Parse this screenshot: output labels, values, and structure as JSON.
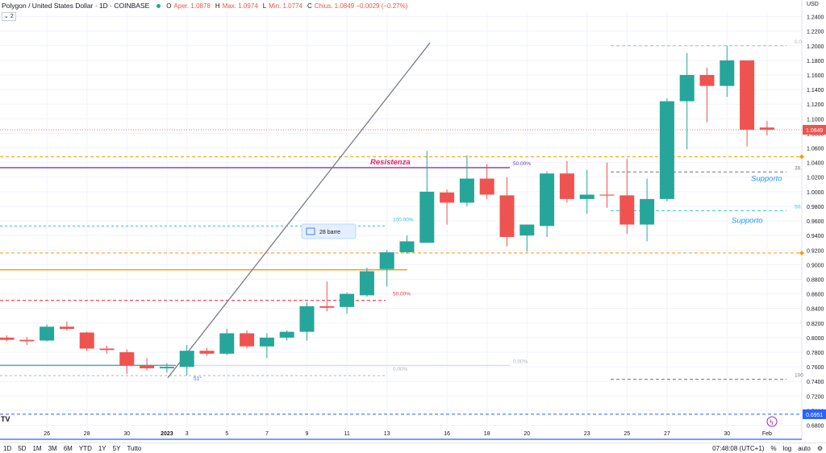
{
  "header": {
    "symbol": "Polygon / United States Dollar · 1D · COINBASE",
    "o_label": "O",
    "o_value": "Aper. 1.0878",
    "h_label": "H",
    "h_value": "Max. 1.0974",
    "l_label": "L",
    "l_value": "Min. 1.0774",
    "c_label": "C",
    "c_value": "Chius. 1.0849 −0.0029 (−0.27%)",
    "collapse": "2"
  },
  "axis_currency": "USD",
  "bottom": {
    "ranges": [
      "1D",
      "5D",
      "1M",
      "3M",
      "6M",
      "YTD",
      "1Y",
      "5Y",
      "Tutto"
    ],
    "clock": "07:48:08 (UTC+1)",
    "percent": "%",
    "log": "log",
    "auto": "auto"
  },
  "colors": {
    "up": "#26a69a",
    "down": "#ef5350",
    "grid": "#f0f3fa"
  },
  "chart_data": {
    "type": "candlestick",
    "title": "Polygon / United States Dollar · 1D · COINBASE",
    "ylim": [
      0.68,
      1.26
    ],
    "yticks": [
      "1.2400",
      "1.2200",
      "1.2000",
      "1.1800",
      "1.1600",
      "1.1400",
      "1.1200",
      "1.1000",
      "1.0800",
      "1.0600",
      "1.0400",
      "1.0200",
      "1.0000",
      "0.9800",
      "0.9600",
      "0.9400",
      "0.9200",
      "0.9000",
      "0.8800",
      "0.8600",
      "0.8400",
      "0.8200",
      "0.8000",
      "0.7800",
      "0.7600",
      "0.7400",
      "0.7200",
      "0.7000",
      "0.6800"
    ],
    "xticks": [
      "26",
      "28",
      "30",
      "2023",
      "3",
      "5",
      "7",
      "9",
      "11",
      "13",
      "16",
      "18",
      "20",
      "23",
      "25",
      "27",
      "30",
      "Feb"
    ],
    "candles": [
      {
        "date": "Dec 24",
        "o": 0.8,
        "h": 0.803,
        "l": 0.795,
        "c": 0.797
      },
      {
        "date": "Dec 25",
        "o": 0.797,
        "h": 0.801,
        "l": 0.79,
        "c": 0.795
      },
      {
        "date": "Dec 26",
        "o": 0.796,
        "h": 0.818,
        "l": 0.795,
        "c": 0.815
      },
      {
        "date": "Dec 27",
        "o": 0.815,
        "h": 0.822,
        "l": 0.81,
        "c": 0.812
      },
      {
        "date": "Dec 28",
        "o": 0.807,
        "h": 0.808,
        "l": 0.782,
        "c": 0.785
      },
      {
        "date": "Dec 29",
        "o": 0.785,
        "h": 0.789,
        "l": 0.778,
        "c": 0.783
      },
      {
        "date": "Dec 30",
        "o": 0.78,
        "h": 0.784,
        "l": 0.75,
        "c": 0.762
      },
      {
        "date": "Dec 31",
        "o": 0.762,
        "h": 0.772,
        "l": 0.755,
        "c": 0.758
      },
      {
        "date": "Jan 01",
        "o": 0.758,
        "h": 0.765,
        "l": 0.752,
        "c": 0.76
      },
      {
        "date": "Jan 02",
        "o": 0.76,
        "h": 0.79,
        "l": 0.748,
        "c": 0.782
      },
      {
        "date": "Jan 03",
        "o": 0.782,
        "h": 0.786,
        "l": 0.775,
        "c": 0.778
      },
      {
        "date": "Jan 04",
        "o": 0.778,
        "h": 0.812,
        "l": 0.776,
        "c": 0.806
      },
      {
        "date": "Jan 05",
        "o": 0.806,
        "h": 0.81,
        "l": 0.785,
        "c": 0.788
      },
      {
        "date": "Jan 06",
        "o": 0.788,
        "h": 0.806,
        "l": 0.772,
        "c": 0.8
      },
      {
        "date": "Jan 07",
        "o": 0.8,
        "h": 0.81,
        "l": 0.796,
        "c": 0.808
      },
      {
        "date": "Jan 08",
        "o": 0.808,
        "h": 0.848,
        "l": 0.796,
        "c": 0.843
      },
      {
        "date": "Jan 09",
        "o": 0.843,
        "h": 0.877,
        "l": 0.836,
        "c": 0.841
      },
      {
        "date": "Jan 10",
        "o": 0.842,
        "h": 0.862,
        "l": 0.833,
        "c": 0.86
      },
      {
        "date": "Jan 11",
        "o": 0.858,
        "h": 0.896,
        "l": 0.856,
        "c": 0.891
      },
      {
        "date": "Jan 12",
        "o": 0.894,
        "h": 0.92,
        "l": 0.87,
        "c": 0.917
      },
      {
        "date": "Jan 13",
        "o": 0.917,
        "h": 0.94,
        "l": 0.915,
        "c": 0.932
      },
      {
        "date": "Jan 14",
        "o": 0.93,
        "h": 1.056,
        "l": 0.93,
        "c": 1.0
      },
      {
        "date": "Jan 15",
        "o": 0.999,
        "h": 1.003,
        "l": 0.955,
        "c": 0.985
      },
      {
        "date": "Jan 16",
        "o": 0.985,
        "h": 1.05,
        "l": 0.98,
        "c": 1.018
      },
      {
        "date": "Jan 17",
        "o": 1.018,
        "h": 1.038,
        "l": 0.99,
        "c": 0.996
      },
      {
        "date": "Jan 18",
        "o": 0.995,
        "h": 1.02,
        "l": 0.925,
        "c": 0.938
      },
      {
        "date": "Jan 19",
        "o": 0.94,
        "h": 0.955,
        "l": 0.918,
        "c": 0.955
      },
      {
        "date": "Jan 20",
        "o": 0.953,
        "h": 1.028,
        "l": 0.938,
        "c": 1.025
      },
      {
        "date": "Jan 21",
        "o": 1.025,
        "h": 1.042,
        "l": 0.985,
        "c": 0.99
      },
      {
        "date": "Jan 22",
        "o": 0.99,
        "h": 1.03,
        "l": 0.97,
        "c": 0.996
      },
      {
        "date": "Jan 23",
        "o": 0.996,
        "h": 1.04,
        "l": 0.978,
        "c": 0.995
      },
      {
        "date": "Jan 24",
        "o": 0.995,
        "h": 1.045,
        "l": 0.942,
        "c": 0.955
      },
      {
        "date": "Jan 25",
        "o": 0.955,
        "h": 1.018,
        "l": 0.932,
        "c": 0.99
      },
      {
        "date": "Jan 26",
        "o": 0.99,
        "h": 1.128,
        "l": 0.987,
        "c": 1.124
      },
      {
        "date": "Jan 27",
        "o": 1.124,
        "h": 1.19,
        "l": 1.058,
        "c": 1.16
      },
      {
        "date": "Jan 28",
        "o": 1.16,
        "h": 1.17,
        "l": 1.095,
        "c": 1.145
      },
      {
        "date": "Jan 29",
        "o": 1.145,
        "h": 1.2,
        "l": 1.13,
        "c": 1.18
      },
      {
        "date": "Jan 30",
        "o": 1.18,
        "h": 1.18,
        "l": 1.062,
        "c": 1.085
      },
      {
        "date": "Jan 31",
        "o": 1.088,
        "h": 1.097,
        "l": 1.077,
        "c": 1.085
      }
    ],
    "last_price": "1.0849",
    "price_marker": "0.6951",
    "annotations": [
      {
        "text": "Resistenza",
        "color": "#e91e63"
      },
      {
        "text": "Supporto",
        "color": "#2196f3"
      },
      {
        "text": "Supporto",
        "color": "#2196f3"
      },
      {
        "text": "28 barre",
        "color": "#2962ff"
      },
      {
        "text": "50.00%",
        "color": "#673ab7"
      },
      {
        "text": "100.00%",
        "color": "#26c6da"
      },
      {
        "text": "50.00%",
        "color": "#f23645"
      },
      {
        "text": "0.00%",
        "color": "#b2b5be"
      },
      {
        "text": "0.0",
        "color": "#b2b5be"
      },
      {
        "text": "38.",
        "color": "#787b86"
      },
      {
        "text": "50.",
        "color": "#26c6da"
      },
      {
        "text": "100",
        "color": "#787b86"
      },
      {
        "text": "51°",
        "color": "#2962ff"
      }
    ],
    "levels": [
      {
        "name": "resistance-line",
        "value": 1.033,
        "color": "#7b1fa2",
        "style": "solid"
      },
      {
        "name": "orange-solid-line",
        "value": 0.893,
        "color": "#ff9800",
        "style": "solid"
      },
      {
        "name": "teal-support-line",
        "value": 0.762,
        "color": "#26a69a",
        "style": "solid"
      },
      {
        "name": "orange-dashed-upper",
        "value": 1.048,
        "color": "#ff9800",
        "style": "dashed"
      },
      {
        "name": "orange-dashed-lower",
        "value": 0.916,
        "color": "#ff9800",
        "style": "dashed"
      },
      {
        "name": "blue-dashed-bottom",
        "value": 0.695,
        "color": "#2962ff",
        "style": "dashed"
      }
    ]
  }
}
